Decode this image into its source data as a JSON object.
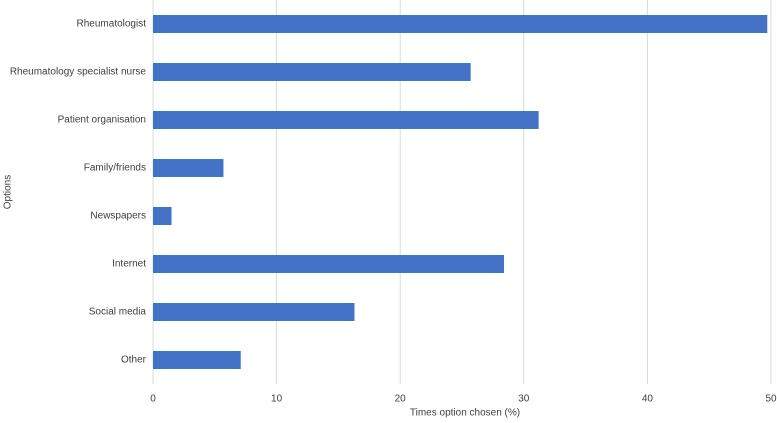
{
  "chart_data": {
    "type": "hbar",
    "x_label": "Times option chosen (%)",
    "y_label": "Options",
    "categories": [
      "Rheumatologist",
      "Rheumatology specialist nurse",
      "Patient organisation",
      "Family/friends",
      "Newspapers",
      "Internet",
      "Social media",
      "Other"
    ],
    "values": [
      49.7,
      25.7,
      31.2,
      5.7,
      1.5,
      28.4,
      16.3,
      7.1
    ],
    "color": "#4472c4",
    "xlim": [
      0,
      50
    ],
    "xticks": [
      0,
      10,
      20,
      30,
      40,
      50
    ],
    "grid": true
  }
}
